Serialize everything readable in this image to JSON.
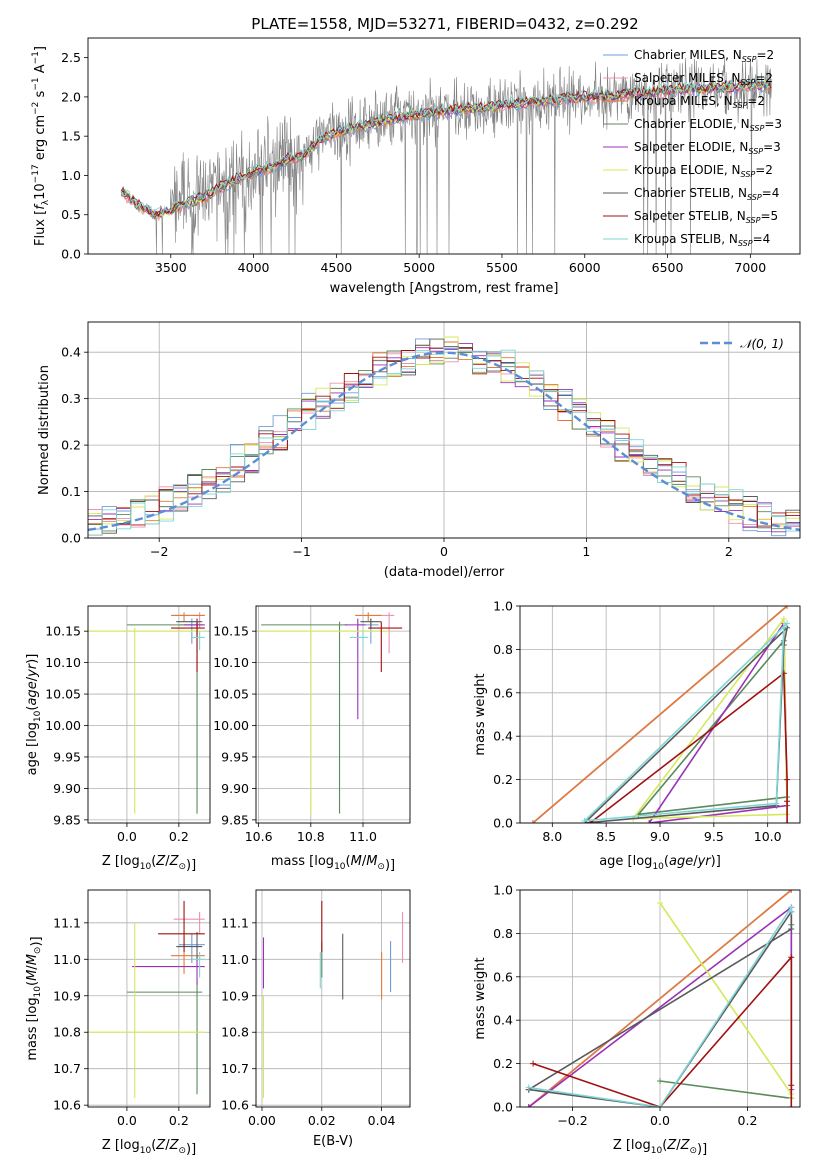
{
  "figure": {
    "title": "PLATE=1558, MJD=53271, FIBERID=0432, z=0.292"
  },
  "colors": {
    "chabrier_miles": "#6f9fd8",
    "salpeter_miles": "#f08fb4",
    "kroupa_miles": "#e07b39",
    "chabrier_elodie": "#5b8a5b",
    "salpeter_elodie": "#9b30b8",
    "kroupa_elodie": "#d6e85a",
    "chabrier_stelib": "#5a5a5a",
    "salpeter_stelib": "#a01010",
    "kroupa_stelib": "#7fd6d6",
    "observed": "#808080",
    "normal": "#5b8ed6"
  },
  "chart_data": [
    {
      "id": "spectrum",
      "type": "line",
      "xlabel": "wavelength [Angstrom, rest frame]",
      "ylabel": "Flux [f_λ 10^-17 erg cm^-2 s^-1 A^-1]",
      "xlim": [
        3000,
        7300
      ],
      "ylim": [
        0,
        2.75
      ],
      "xticks": [
        3500,
        4000,
        4500,
        5000,
        5500,
        6000,
        6500,
        7000
      ],
      "yticks": [
        0.0,
        0.5,
        1.0,
        1.5,
        2.0,
        2.5
      ],
      "grid": false,
      "legend_position": "top-right",
      "legend": [
        {
          "label": "Chabrier MILES, N",
          "sub": "SSP",
          "value": "=2",
          "color_key": "chabrier_miles"
        },
        {
          "label": "Salpeter MILES, N",
          "sub": "SSP",
          "value": "=2",
          "color_key": "salpeter_miles"
        },
        {
          "label": "Kroupa MILES, N",
          "sub": "SSP",
          "value": "=2",
          "color_key": "kroupa_miles"
        },
        {
          "label": "Chabrier ELODIE, N",
          "sub": "SSP",
          "value": "=3",
          "color_key": "chabrier_elodie"
        },
        {
          "label": "Salpeter ELODIE, N",
          "sub": "SSP",
          "value": "=3",
          "color_key": "salpeter_elodie"
        },
        {
          "label": "Kroupa ELODIE, N",
          "sub": "SSP",
          "value": "=2",
          "color_key": "kroupa_elodie"
        },
        {
          "label": "Chabrier STELIB, N",
          "sub": "SSP",
          "value": "=4",
          "color_key": "chabrier_stelib"
        },
        {
          "label": "Salpeter STELIB, N",
          "sub": "SSP",
          "value": "=5",
          "color_key": "salpeter_stelib"
        },
        {
          "label": "Kroupa STELIB, N",
          "sub": "SSP",
          "value": "=4",
          "color_key": "kroupa_stelib"
        }
      ],
      "model_continuum": {
        "x": [
          3200,
          3300,
          3400,
          3500,
          3600,
          3700,
          3800,
          3900,
          4000,
          4100,
          4200,
          4300,
          4400,
          4500,
          4600,
          4700,
          4800,
          4900,
          5000,
          5100,
          5200,
          5300,
          5400,
          5500,
          5600,
          5700,
          5800,
          5900,
          6000,
          6100,
          6200,
          6300,
          6400,
          6500,
          6600,
          6700,
          6800,
          6900,
          7000,
          7100
        ],
        "y": [
          0.8,
          0.62,
          0.5,
          0.55,
          0.65,
          0.72,
          0.85,
          0.95,
          1.05,
          1.1,
          1.2,
          1.25,
          1.45,
          1.55,
          1.6,
          1.65,
          1.7,
          1.75,
          1.78,
          1.8,
          1.82,
          1.85,
          1.85,
          1.9,
          1.92,
          1.95,
          1.95,
          1.98,
          2.0,
          2.0,
          2.02,
          2.05,
          2.05,
          2.08,
          2.1,
          2.1,
          2.12,
          2.12,
          2.15,
          2.15
        ]
      },
      "observed_range": [
        3200,
        7130
      ]
    },
    {
      "id": "residuals",
      "type": "line",
      "xlabel": "(data-model)/error",
      "ylabel": "Normed distribution",
      "xlim": [
        -2.5,
        2.5
      ],
      "ylim": [
        0,
        0.465
      ],
      "xticks": [
        -2,
        -1,
        0,
        1,
        2
      ],
      "yticks": [
        0.0,
        0.1,
        0.2,
        0.3,
        0.4
      ],
      "grid": true,
      "legend_position": "top-right",
      "legend": [
        {
          "label": "𝒩(0, 1)",
          "color_key": "normal"
        }
      ],
      "hist_bin_width": 0.1
    },
    {
      "id": "age_vs_Z",
      "type": "scatter",
      "xlabel": "Z [log10(Z/Z☉)]",
      "ylabel": "age  [log10(age/yr)]",
      "xlim": [
        -0.15,
        0.32
      ],
      "ylim": [
        9.845,
        10.19
      ],
      "xticks": [
        0.0,
        0.2
      ],
      "yticks": [
        9.85,
        9.9,
        9.95,
        10.0,
        10.05,
        10.1,
        10.15
      ],
      "grid": true,
      "points": [
        {
          "key": "chabrier_miles",
          "x": 0.25,
          "y": 10.16,
          "xerr": [
            0.05,
            0.05
          ],
          "yerr": [
            0.03,
            0.01
          ]
        },
        {
          "key": "salpeter_miles",
          "x": 0.28,
          "y": 10.175,
          "xerr": [
            0.1,
            0.02
          ],
          "yerr": [
            0.02,
            0.005
          ]
        },
        {
          "key": "kroupa_miles",
          "x": 0.22,
          "y": 10.175,
          "xerr": [
            0.05,
            0.08
          ],
          "yerr": [
            0.01,
            0.005
          ]
        },
        {
          "key": "chabrier_elodie",
          "x": 0.27,
          "y": 10.16,
          "xerr": [
            0.27,
            0.02
          ],
          "yerr": [
            0.3,
            0.01
          ]
        },
        {
          "key": "salpeter_elodie",
          "x": 0.27,
          "y": 10.16,
          "xerr": [
            0.05,
            0.03
          ],
          "yerr": [
            0.02,
            0.01
          ]
        },
        {
          "key": "kroupa_elodie",
          "x": 0.03,
          "y": 10.15,
          "xerr": [
            0.18,
            0.27
          ],
          "yerr": [
            0.29,
            0.005
          ]
        },
        {
          "key": "chabrier_stelib",
          "x": 0.27,
          "y": 10.165,
          "xerr": [
            0.08,
            0.02
          ],
          "yerr": [
            0.01,
            0.005
          ]
        },
        {
          "key": "salpeter_stelib",
          "x": 0.27,
          "y": 10.155,
          "xerr": [
            0.1,
            0.03
          ],
          "yerr": [
            0.07,
            0.01
          ]
        },
        {
          "key": "kroupa_stelib",
          "x": 0.28,
          "y": 10.14,
          "xerr": [
            0.03,
            0.02
          ],
          "yerr": [
            0.02,
            0.01
          ]
        }
      ]
    },
    {
      "id": "age_vs_mass",
      "type": "scatter",
      "xlabel": "mass [log10(M/M☉)]",
      "ylabel": "",
      "xlim": [
        10.59,
        11.18
      ],
      "ylim": [
        9.845,
        10.19
      ],
      "xticks": [
        10.6,
        10.8,
        11.0
      ],
      "yticks": [
        9.85,
        9.9,
        9.95,
        10.0,
        10.05,
        10.1,
        10.15
      ],
      "grid": true,
      "points": [
        {
          "key": "chabrier_miles",
          "x": 11.03,
          "y": 10.16,
          "xerr": [
            0.05,
            0.03
          ],
          "yerr": [
            0.03,
            0.01
          ]
        },
        {
          "key": "salpeter_miles",
          "x": 11.1,
          "y": 10.175,
          "xerr": [
            0.04,
            0.02
          ],
          "yerr": [
            0.06,
            0.005
          ]
        },
        {
          "key": "kroupa_miles",
          "x": 11.02,
          "y": 10.175,
          "xerr": [
            0.05,
            0.05
          ],
          "yerr": [
            0.01,
            0.005
          ]
        },
        {
          "key": "chabrier_elodie",
          "x": 10.91,
          "y": 10.16,
          "xerr": [
            0.3,
            0.03
          ],
          "yerr": [
            0.3,
            0.005
          ]
        },
        {
          "key": "salpeter_elodie",
          "x": 10.98,
          "y": 10.16,
          "xerr": [
            0.05,
            0.03
          ],
          "yerr": [
            0.15,
            0.01
          ]
        },
        {
          "key": "kroupa_elodie",
          "x": 10.8,
          "y": 10.15,
          "xerr": [
            0.2,
            0.3
          ],
          "yerr": [
            0.29,
            0.005
          ]
        },
        {
          "key": "chabrier_stelib",
          "x": 11.03,
          "y": 10.165,
          "xerr": [
            0.04,
            0.04
          ],
          "yerr": [
            0.01,
            0.005
          ]
        },
        {
          "key": "salpeter_stelib",
          "x": 11.07,
          "y": 10.155,
          "xerr": [
            0.05,
            0.08
          ],
          "yerr": [
            0.07,
            0.01
          ]
        },
        {
          "key": "kroupa_stelib",
          "x": 11.0,
          "y": 10.14,
          "xerr": [
            0.05,
            0.02
          ],
          "yerr": [
            0.02,
            0.01
          ]
        }
      ]
    },
    {
      "id": "weight_vs_age",
      "type": "line",
      "xlabel": "age  [log10(age/yr)]",
      "ylabel": "mass weight",
      "xlim": [
        7.7,
        10.3
      ],
      "ylim": [
        0,
        1.0
      ],
      "xticks": [
        8.0,
        8.5,
        9.0,
        9.5,
        10.0
      ],
      "yticks": [
        0.0,
        0.2,
        0.4,
        0.6,
        0.8,
        1.0
      ],
      "grid": true,
      "series": [
        {
          "key": "chabrier_miles",
          "x": [
            10.18,
            7.82
          ],
          "y": [
            1.0,
            0.0
          ]
        },
        {
          "key": "salpeter_miles",
          "x": [
            10.18,
            7.82
          ],
          "y": [
            1.0,
            0.0
          ]
        },
        {
          "key": "kroupa_miles",
          "x": [
            7.82,
            10.18
          ],
          "y": [
            0.0,
            1.0
          ]
        },
        {
          "key": "chabrier_elodie",
          "x": [
            8.8,
            10.15,
            10.18,
            8.8
          ],
          "y": [
            0.04,
            0.84,
            0.12,
            0.04
          ]
        },
        {
          "key": "salpeter_elodie",
          "x": [
            8.9,
            10.15,
            10.18,
            8.9
          ],
          "y": [
            0.0,
            0.92,
            0.08,
            0.0
          ]
        },
        {
          "key": "kroupa_elodie",
          "x": [
            8.75,
            10.15,
            10.18,
            8.75
          ],
          "y": [
            0.02,
            0.94,
            0.04,
            0.02
          ]
        },
        {
          "key": "chabrier_stelib",
          "x": [
            8.3,
            10.08,
            10.15,
            10.18,
            8.3
          ],
          "y": [
            0.0,
            0.08,
            0.82,
            0.9,
            0.0
          ]
        },
        {
          "key": "salpeter_stelib",
          "x": [
            8.35,
            10.15,
            10.18,
            10.18,
            10.18
          ],
          "y": [
            0.0,
            0.69,
            0.2,
            0.1,
            0.0
          ]
        },
        {
          "key": "kroupa_stelib",
          "x": [
            8.3,
            10.08,
            10.15,
            10.18,
            8.3
          ],
          "y": [
            0.01,
            0.09,
            0.9,
            0.92,
            0.01
          ]
        }
      ]
    },
    {
      "id": "mass_vs_Z",
      "type": "scatter",
      "xlabel": "Z [log10(Z/Z☉)]",
      "ylabel": "mass [log10(M/M☉)]",
      "xlim": [
        -0.15,
        0.32
      ],
      "ylim": [
        10.595,
        11.19
      ],
      "xticks": [
        0.0,
        0.2
      ],
      "yticks": [
        10.6,
        10.7,
        10.8,
        10.9,
        11.0,
        11.1
      ],
      "grid": true,
      "points": [
        {
          "key": "chabrier_miles",
          "x": 0.25,
          "y": 11.04,
          "xerr": [
            0.05,
            0.05
          ],
          "yerr": [
            0.05,
            0.03
          ]
        },
        {
          "key": "salpeter_miles",
          "x": 0.28,
          "y": 11.11,
          "xerr": [
            0.1,
            0.02
          ],
          "yerr": [
            0.04,
            0.02
          ]
        },
        {
          "key": "kroupa_miles",
          "x": 0.22,
          "y": 11.01,
          "xerr": [
            0.05,
            0.08
          ],
          "yerr": [
            0.05,
            0.05
          ]
        },
        {
          "key": "chabrier_elodie",
          "x": 0.27,
          "y": 10.91,
          "xerr": [
            0.27,
            0.02
          ],
          "yerr": [
            0.28,
            0.03
          ]
        },
        {
          "key": "salpeter_elodie",
          "x": 0.27,
          "y": 10.98,
          "xerr": [
            0.25,
            0.03
          ],
          "yerr": [
            0.05,
            0.03
          ]
        },
        {
          "key": "kroupa_elodie",
          "x": 0.03,
          "y": 10.8,
          "xerr": [
            0.18,
            0.27
          ],
          "yerr": [
            0.18,
            0.3
          ]
        },
        {
          "key": "chabrier_stelib",
          "x": 0.27,
          "y": 11.035,
          "xerr": [
            0.08,
            0.02
          ],
          "yerr": [
            0.04,
            0.04
          ]
        },
        {
          "key": "salpeter_stelib",
          "x": 0.22,
          "y": 11.07,
          "xerr": [
            0.1,
            0.08
          ],
          "yerr": [
            0.05,
            0.09
          ]
        },
        {
          "key": "kroupa_stelib",
          "x": 0.28,
          "y": 11.0,
          "xerr": [
            0.03,
            0.02
          ],
          "yerr": [
            0.05,
            0.02
          ]
        }
      ]
    },
    {
      "id": "mass_vs_EBV",
      "type": "scatter",
      "xlabel": "E(B-V)",
      "ylabel": "",
      "xlim": [
        -0.002,
        0.0495
      ],
      "ylim": [
        10.595,
        11.19
      ],
      "xticks": [
        0.0,
        0.02,
        0.04
      ],
      "yticks": [
        10.6,
        10.7,
        10.8,
        10.9,
        11.0,
        11.1
      ],
      "grid": true,
      "points": [
        {
          "key": "chabrier_miles",
          "x": 0.043,
          "y": 11.0,
          "yerr": [
            0.09,
            0.05
          ]
        },
        {
          "key": "salpeter_miles",
          "x": 0.047,
          "y": 11.05,
          "yerr": [
            0.06,
            0.08
          ]
        },
        {
          "key": "kroupa_miles",
          "x": 0.04,
          "y": 10.95,
          "yerr": [
            0.06,
            0.07
          ]
        },
        {
          "key": "chabrier_elodie",
          "x": 0.02,
          "y": 11.0,
          "yerr": [
            0.05,
            0.05
          ]
        },
        {
          "key": "salpeter_elodie",
          "x": 0.0005,
          "y": 11.0,
          "yerr": [
            0.08,
            0.06
          ]
        },
        {
          "key": "kroupa_elodie",
          "x": 0.0005,
          "y": 10.8,
          "yerr": [
            0.18,
            0.1
          ]
        },
        {
          "key": "chabrier_stelib",
          "x": 0.027,
          "y": 10.98,
          "yerr": [
            0.09,
            0.09
          ]
        },
        {
          "key": "salpeter_stelib",
          "x": 0.02,
          "y": 11.07,
          "yerr": [
            0.05,
            0.09
          ]
        },
        {
          "key": "kroupa_stelib",
          "x": 0.0195,
          "y": 10.97,
          "yerr": [
            0.05,
            0.05
          ]
        }
      ]
    },
    {
      "id": "weight_vs_Z",
      "type": "line",
      "xlabel": "Z [log10(Z/Z☉)]",
      "ylabel": "mass weight",
      "xlim": [
        -0.32,
        0.32
      ],
      "ylim": [
        0,
        1.0
      ],
      "xticks": [
        -0.2,
        0.0,
        0.2
      ],
      "yticks": [
        0.0,
        0.2,
        0.4,
        0.6,
        0.8,
        1.0
      ],
      "grid": true,
      "series": [
        {
          "key": "chabrier_miles",
          "x": [
            -0.3,
            0.3
          ],
          "y": [
            0.0,
            1.0
          ]
        },
        {
          "key": "salpeter_miles",
          "x": [
            -0.3,
            0.3
          ],
          "y": [
            0.0,
            1.0
          ]
        },
        {
          "key": "kroupa_miles",
          "x": [
            -0.3,
            0.3
          ],
          "y": [
            0.0,
            1.0
          ]
        },
        {
          "key": "chabrier_elodie",
          "x": [
            0.0,
            0.3,
            0.3,
            0.3
          ],
          "y": [
            0.12,
            0.04,
            0.84,
            0.04
          ]
        },
        {
          "key": "salpeter_elodie",
          "x": [
            -0.3,
            0.3,
            0.3
          ],
          "y": [
            0.0,
            0.92,
            0.08
          ]
        },
        {
          "key": "kroupa_elodie",
          "x": [
            0.0,
            0.3,
            0.3
          ],
          "y": [
            0.94,
            0.06,
            0.04
          ]
        },
        {
          "key": "chabrier_stelib",
          "x": [
            -0.3,
            0.0,
            0.3,
            0.3,
            -0.3
          ],
          "y": [
            0.08,
            0.0,
            0.9,
            0.82,
            0.08
          ]
        },
        {
          "key": "salpeter_stelib",
          "x": [
            -0.29,
            0.0,
            0.3,
            0.3,
            0.3
          ],
          "y": [
            0.2,
            0.0,
            0.69,
            0.1,
            0.0
          ]
        },
        {
          "key": "kroupa_stelib",
          "x": [
            -0.3,
            0.0,
            0.3,
            0.3
          ],
          "y": [
            0.09,
            0.0,
            0.92,
            0.9
          ]
        }
      ]
    }
  ]
}
